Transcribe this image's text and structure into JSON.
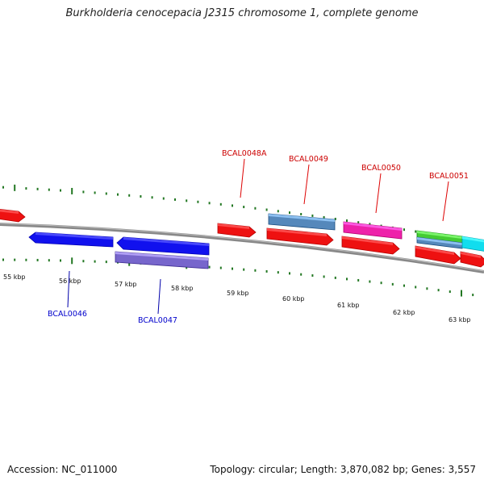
{
  "title": "Burkholderia cenocepacia J2315 chromosome 1, complete genome",
  "footer": {
    "accession": "Accession: NC_011000",
    "summary": "Topology: circular; Length: 3,870,082 bp; Genes: 3,557"
  },
  "colors": {
    "backbone": "#888888",
    "tick": "#227722",
    "label_top": "#cc0000",
    "label_bottom": "#0000cc",
    "leader_top": "#dd0000",
    "leader_bottom": "#0000aa"
  },
  "scale": {
    "kbp_labels": [
      {
        "kbp": 55,
        "text": "55 kbp"
      },
      {
        "kbp": 56,
        "text": "56 kbp"
      },
      {
        "kbp": 57,
        "text": "57 kbp"
      },
      {
        "kbp": 58,
        "text": "58 kbp"
      },
      {
        "kbp": 59,
        "text": "59 kbp"
      },
      {
        "kbp": 60,
        "text": "60 kbp"
      },
      {
        "kbp": 61,
        "text": "61 kbp"
      },
      {
        "kbp": 62,
        "text": "62 kbp"
      },
      {
        "kbp": 63,
        "text": "63 kbp"
      }
    ]
  },
  "gene_labels": [
    {
      "text": "BCAL0046",
      "strand": "bottom"
    },
    {
      "text": "BCAL0047",
      "strand": "bottom"
    },
    {
      "text": "BCAL0048A",
      "strand": "top"
    },
    {
      "text": "BCAL0049",
      "strand": "top"
    },
    {
      "text": "BCAL0050",
      "strand": "top"
    },
    {
      "text": "BCAL0051",
      "strand": "top"
    }
  ],
  "features": [
    {
      "name": "red",
      "color": "#ee1111",
      "direction": "forward"
    },
    {
      "name": "blue",
      "color": "#1111ee",
      "direction": "reverse"
    },
    {
      "name": "slate",
      "color": "#7766cc",
      "direction": "none"
    },
    {
      "name": "steelblue",
      "color": "#5588bb",
      "direction": "none"
    },
    {
      "name": "magenta",
      "color": "#ee22aa",
      "direction": "none"
    },
    {
      "name": "green",
      "color": "#44cc33",
      "direction": "none"
    },
    {
      "name": "cyan",
      "color": "#11ddee",
      "direction": "none"
    }
  ]
}
